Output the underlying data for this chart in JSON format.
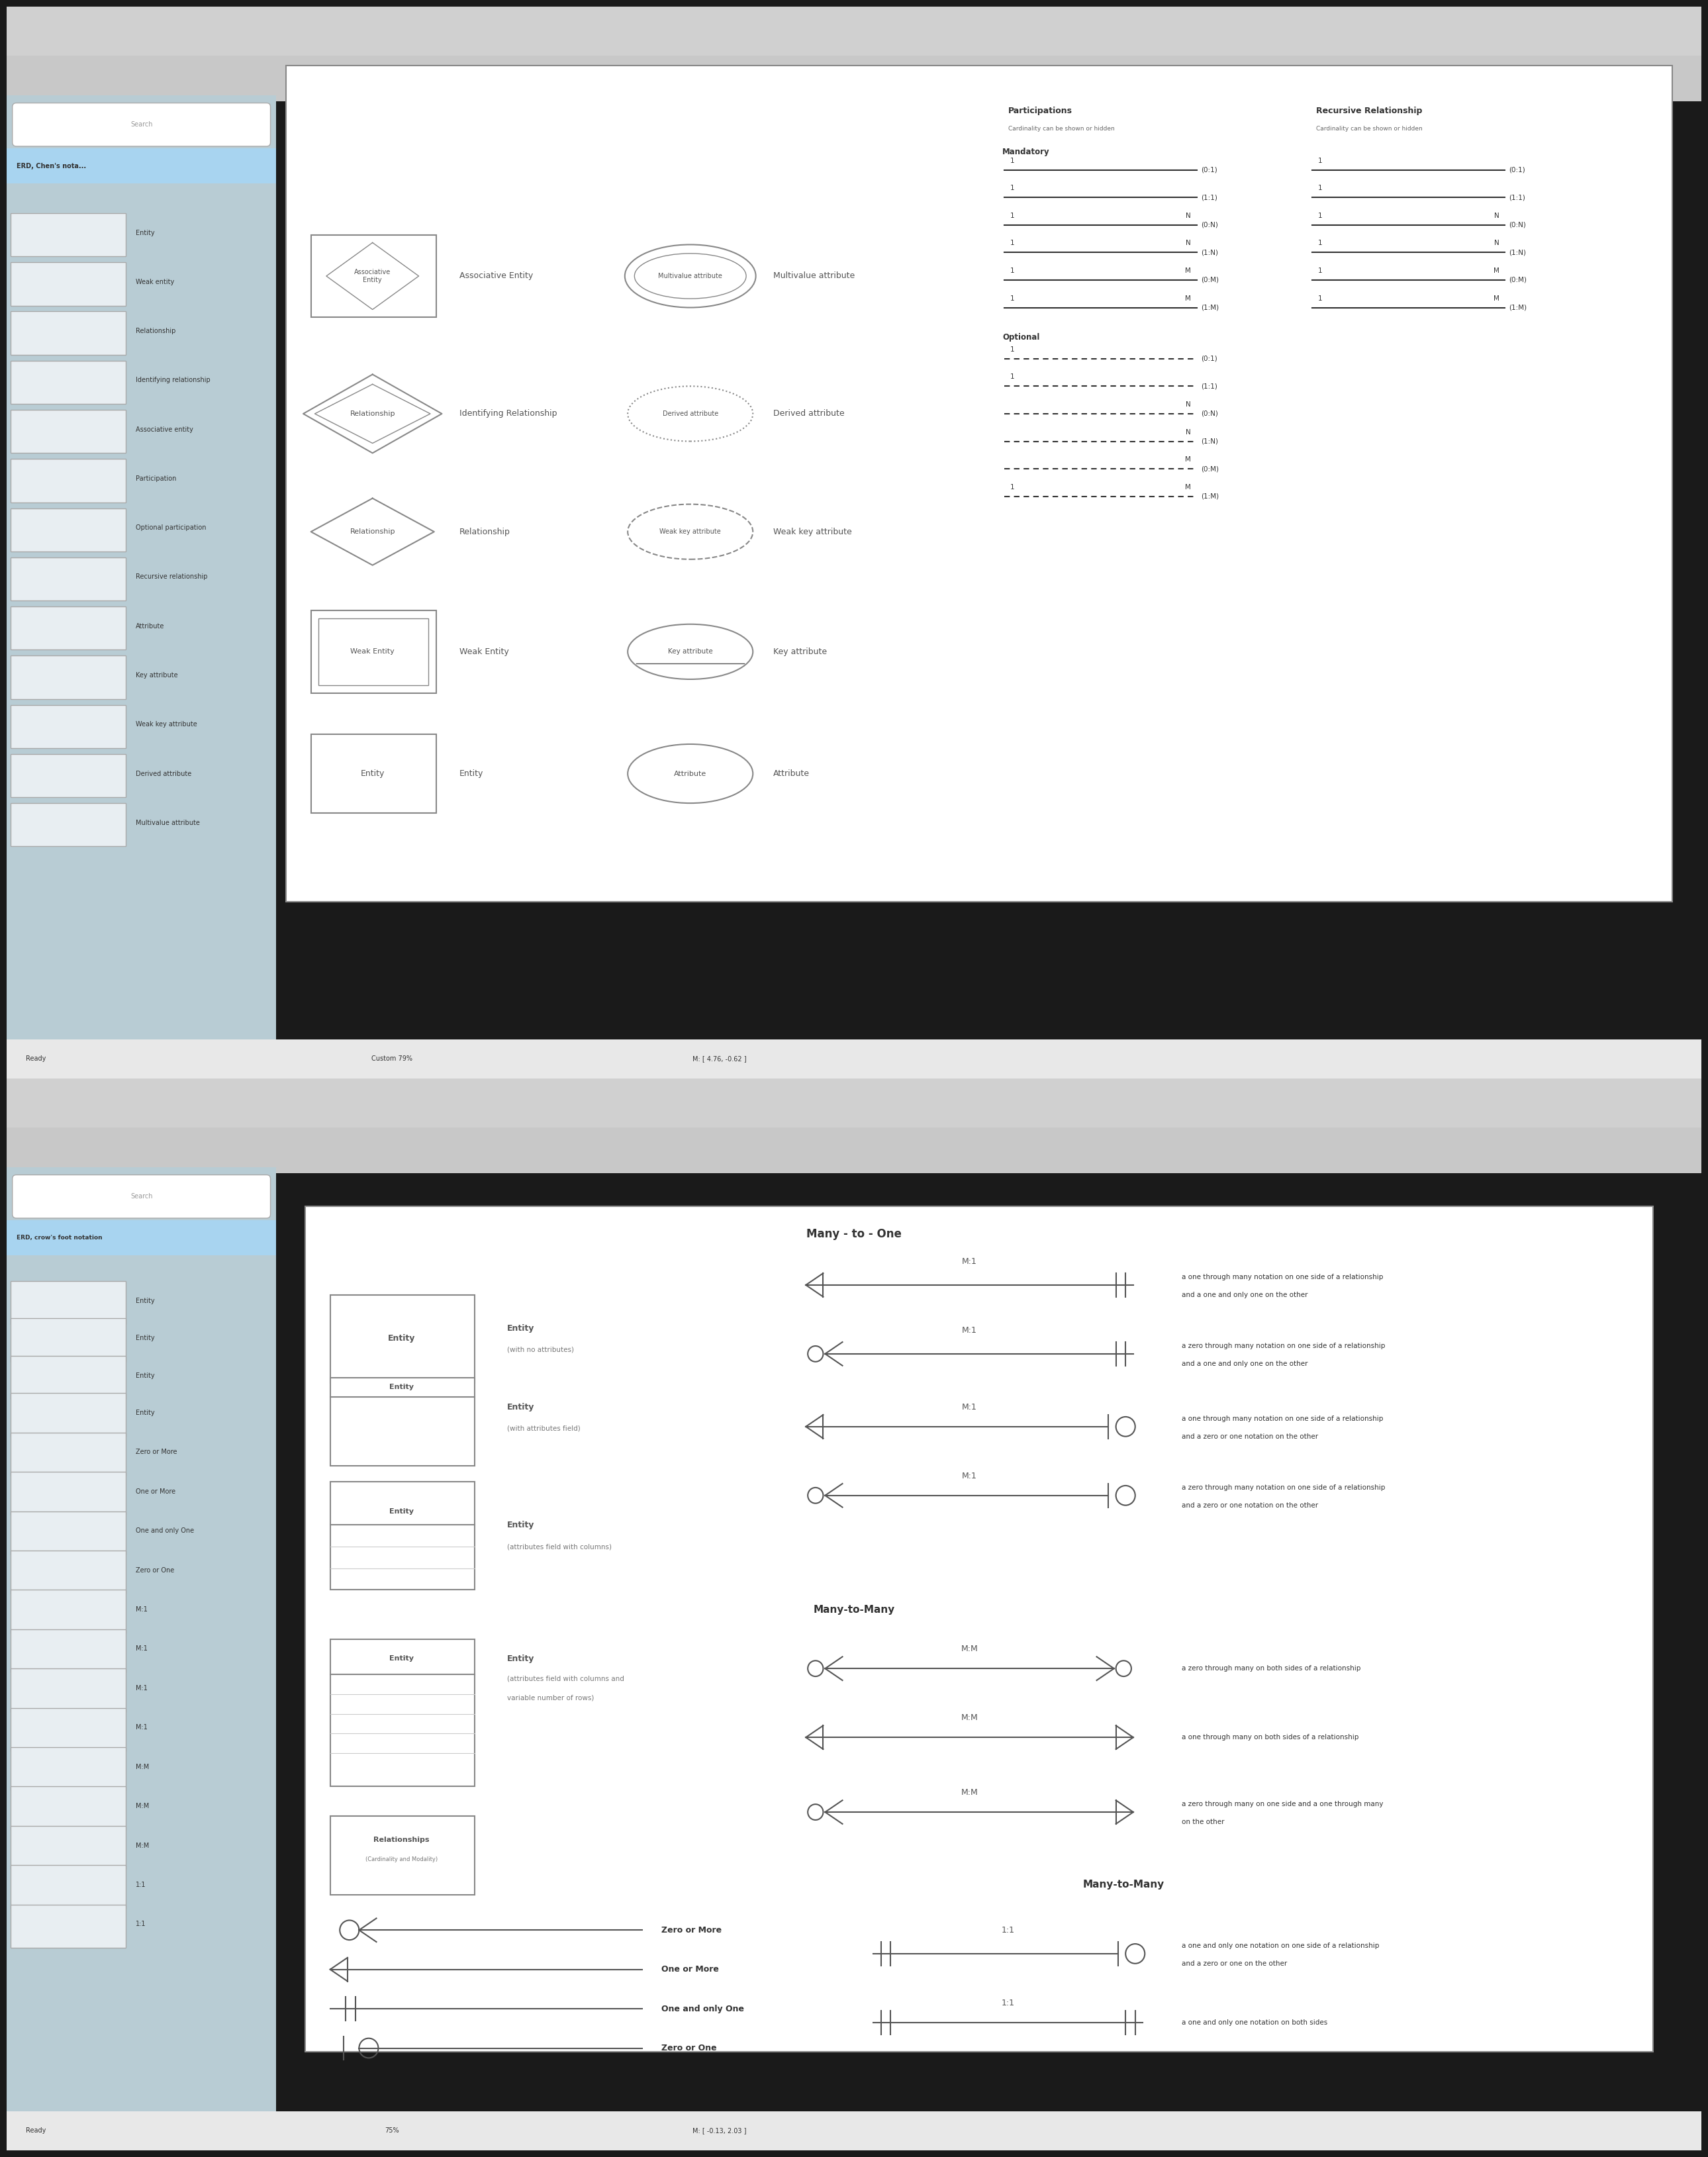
{
  "bg_color": "#8fa8a8",
  "sidebar_bg": "#b8ccd4",
  "panel_bg": "#ffffff",
  "toolbar_bg": "#e8e8e8",
  "highlight_bg": "#a8d4f0",
  "panel1_title": "ERD, Chen's nota...",
  "panel2_title": "ERD, crow's foot notation",
  "sidebar_items_top": [
    "Entity",
    "Weak entity",
    "Relationship",
    "Identifying relationship",
    "Associative entity",
    "Participation",
    "Optional participation",
    "Recursive relationship",
    "Attribute",
    "Key attribute",
    "Weak key attribute",
    "Derived attribute",
    "Multivalue attribute"
  ],
  "sidebar_items_bottom": [
    "Entity",
    "Entity",
    "Entity",
    "Entity",
    "Zero or More",
    "One or More",
    "One and only One",
    "Zero or One",
    "M:1",
    "M:1",
    "M:1",
    "M:1",
    "M:M",
    "M:M",
    "M:M",
    "1:1",
    "1:1"
  ],
  "top_section_title": "Participations",
  "top_section_sub": "Cardinality can be shown or hidden",
  "rec_rel_title": "Recursive Relationship",
  "rec_rel_sub": "Cardinality can be shown or hidden",
  "mandatory_label": "Mandatory",
  "optional_label": "Optional",
  "bottom_title": "Many - to - One",
  "bottom_many_many": "Many-to-Many",
  "status_top": "Ready",
  "status_top_coord": "M: [ 4.76, -0.62 ]",
  "status_top_zoom": "Custom 79%",
  "status_bot": "Ready",
  "status_bot_coord": "M: [ -0.13, 2.03 ]",
  "status_bot_zoom": "75%"
}
